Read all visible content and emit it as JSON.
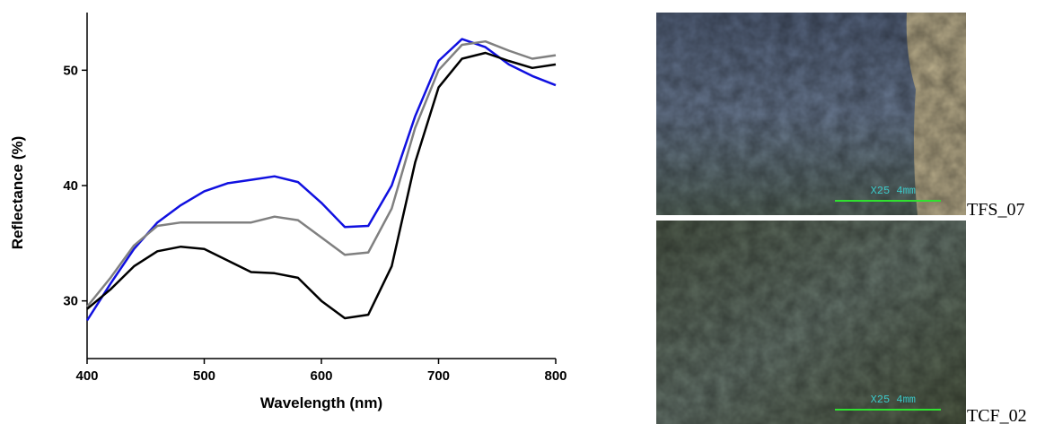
{
  "chart_data": {
    "type": "line",
    "xlabel": "Wavelength (nm)",
    "ylabel": "Reflectance (%)",
    "x": [
      400,
      420,
      440,
      460,
      480,
      500,
      520,
      540,
      560,
      580,
      600,
      620,
      640,
      660,
      680,
      700,
      720,
      740,
      760,
      780,
      800
    ],
    "series": [
      {
        "color": "#1010e0",
        "values": [
          28.3,
          31.5,
          34.5,
          36.8,
          38.3,
          39.5,
          40.2,
          40.5,
          40.8,
          40.3,
          38.5,
          36.4,
          36.5,
          40,
          46,
          50.8,
          52.7,
          52,
          50.5,
          49.5,
          48.7
        ]
      },
      {
        "color": "#808080",
        "values": [
          29.5,
          32,
          34.8,
          36.5,
          36.8,
          36.8,
          36.8,
          36.8,
          37.3,
          37,
          35.5,
          34,
          34.2,
          38,
          45,
          50,
          52.2,
          52.5,
          51.7,
          51,
          51.3
        ]
      },
      {
        "color": "#000000",
        "values": [
          29.3,
          31,
          33,
          34.3,
          34.7,
          34.5,
          33.5,
          32.5,
          32.4,
          32,
          30,
          28.5,
          28.8,
          33,
          42,
          48.5,
          51,
          51.5,
          50.8,
          50.2,
          50.5
        ]
      }
    ],
    "xlim": [
      400,
      800
    ],
    "xticks": [
      400,
      500,
      600,
      700,
      800
    ],
    "ylim": [
      25,
      55
    ],
    "yticks": [
      30,
      40,
      50
    ]
  },
  "images": [
    {
      "label": "TFS_07",
      "scale_text": "X25 4mm"
    },
    {
      "label": "TCF_02",
      "scale_text": "X25 4mm"
    }
  ]
}
